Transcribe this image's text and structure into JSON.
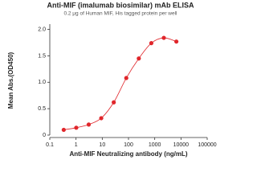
{
  "chart_data": {
    "type": "scatter",
    "title": "Anti-MIF (imalumab biosimilar) mAb ELISA",
    "subtitle": "0.2 μg of Human MIF, His tagged protein per well",
    "x_label": "Anti-MIF Neutralizing antibody (ng/mL)",
    "y_label": "Mean Abs.(OD450)",
    "xscale": "log",
    "xlim": [
      0.1,
      100000
    ],
    "xticks": [
      0.1,
      1,
      10,
      100,
      1000,
      10000,
      100000
    ],
    "ylim": [
      0,
      2.1
    ],
    "yticks": [
      0,
      0.5,
      {
        "value": 1,
        "label": "1.0"
      },
      1.5,
      {
        "value": 2,
        "label": "2.0"
      }
    ],
    "fit_curve": true,
    "series": [
      {
        "color": "#e0262b",
        "x": [
          0.34,
          1.02,
          3.05,
          9.14,
          27.4,
          82.3,
          247,
          741,
          2222,
          6667
        ],
        "values": [
          0.1,
          0.14,
          0.2,
          0.32,
          0.62,
          1.08,
          1.45,
          1.74,
          1.84,
          1.77
        ]
      }
    ]
  }
}
